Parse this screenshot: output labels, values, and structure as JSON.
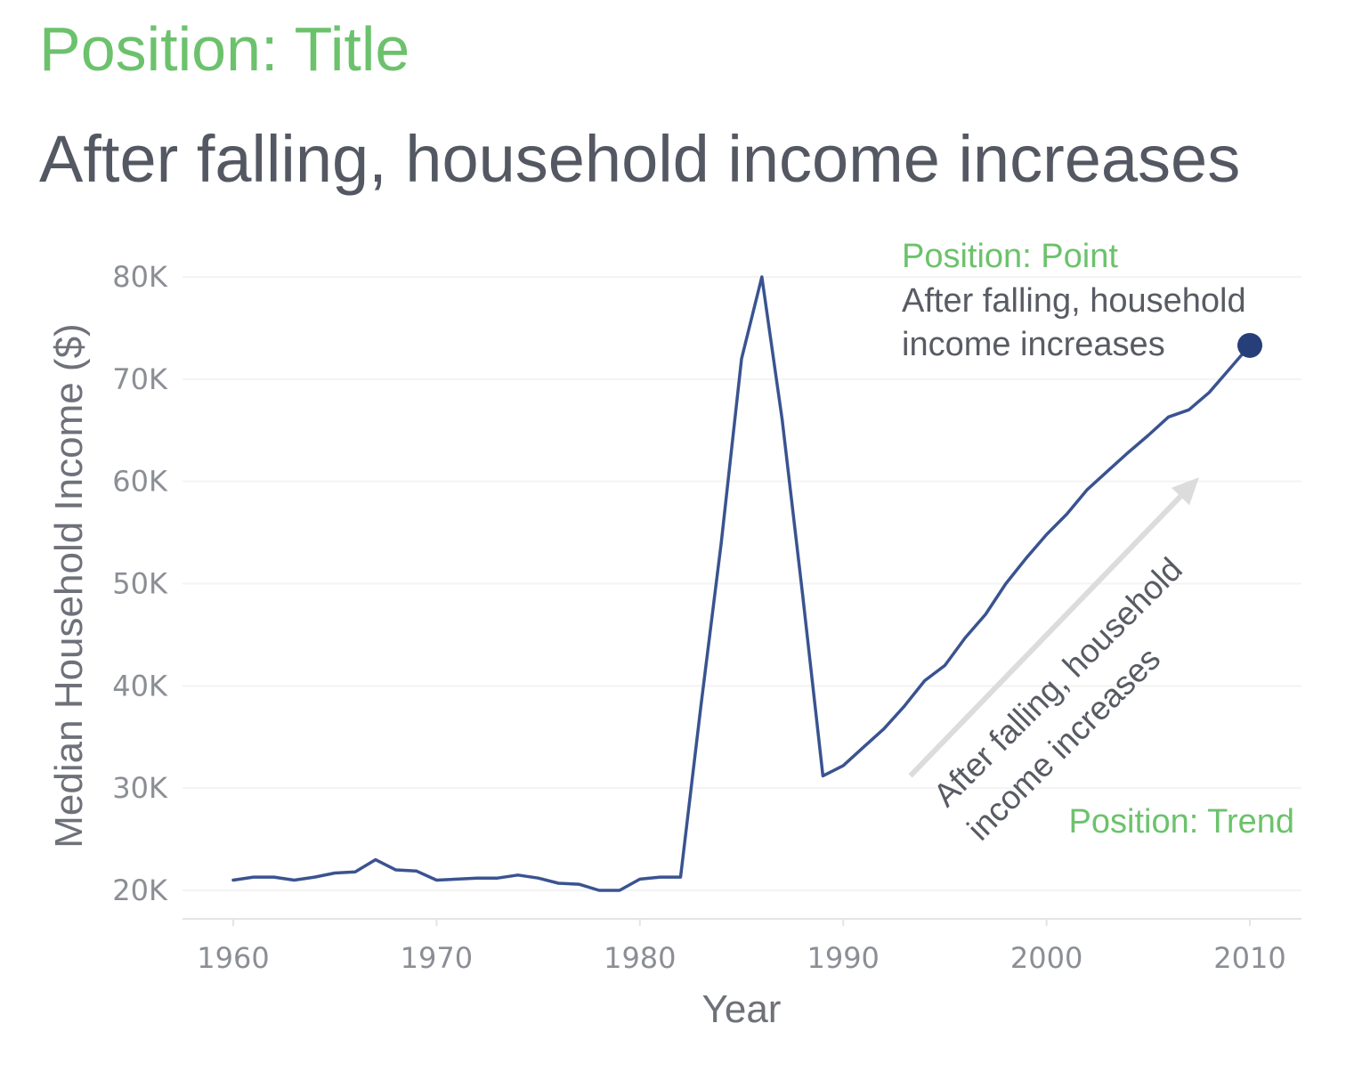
{
  "header": {
    "position_label": "Position: Title",
    "title": "After falling, household income increases"
  },
  "annotations": {
    "point_label": "Position: Point",
    "point_text_line1": "After falling, household",
    "point_text_line2": "income increases",
    "trend_label": "Position: Trend",
    "trend_text_line1": "After falling, household",
    "trend_text_line2": "income increases"
  },
  "colors": {
    "line": "#3a5390",
    "point": "#263f78",
    "annotation_label": "#6cc26c",
    "trend_arrow": "#dcdcdc",
    "grid": "#f3f3f3"
  },
  "chart_data": {
    "type": "line",
    "title": "After falling, household income increases",
    "xlabel": "Year",
    "ylabel": "Median Household Income ($)",
    "xlim": [
      1957.5,
      2012.5
    ],
    "ylim": [
      17200,
      82000
    ],
    "x_ticks": [
      1960,
      1970,
      1980,
      1990,
      2000,
      2010
    ],
    "x_tick_labels": [
      "1960",
      "1970",
      "1980",
      "1990",
      "2000",
      "2010"
    ],
    "y_ticks": [
      20000,
      30000,
      40000,
      50000,
      60000,
      70000,
      80000
    ],
    "y_tick_labels": [
      "20K",
      "30K",
      "40K",
      "50K",
      "60K",
      "70K",
      "80K"
    ],
    "grid": true,
    "series": [
      {
        "x": [
          1960,
          1961,
          1962,
          1963,
          1964,
          1965,
          1966,
          1967,
          1968,
          1969,
          1970,
          1971,
          1972,
          1973,
          1974,
          1975,
          1976,
          1977,
          1978,
          1979,
          1980,
          1981,
          1982,
          1983,
          1984,
          1985,
          1986,
          1987,
          1988,
          1989,
          1990,
          1991,
          1992,
          1993,
          1994,
          1995,
          1996,
          1997,
          1998,
          1999,
          2000,
          2001,
          2002,
          2003,
          2004,
          2005,
          2006,
          2007,
          2008,
          2009,
          2010
        ],
        "y": [
          21000,
          21300,
          21300,
          21000,
          21300,
          21700,
          21800,
          23000,
          22000,
          21900,
          21000,
          21100,
          21200,
          21200,
          21500,
          21200,
          20700,
          20600,
          20000,
          20000,
          21100,
          21300,
          21300,
          38000,
          54000,
          72000,
          80000,
          66000,
          49000,
          31200,
          32200,
          34000,
          35800,
          38000,
          40500,
          42000,
          44700,
          47000,
          50000,
          52500,
          54800,
          56800,
          59200,
          61000,
          62800,
          64500,
          66300,
          67000,
          68700,
          71000,
          73300
        ]
      }
    ],
    "highlight_point": {
      "x": 2010,
      "y": 73300
    },
    "trend_arrow": {
      "from": {
        "x": 1993.3,
        "y": 31200
      },
      "to": {
        "x": 2007.5,
        "y": 60400
      }
    }
  }
}
